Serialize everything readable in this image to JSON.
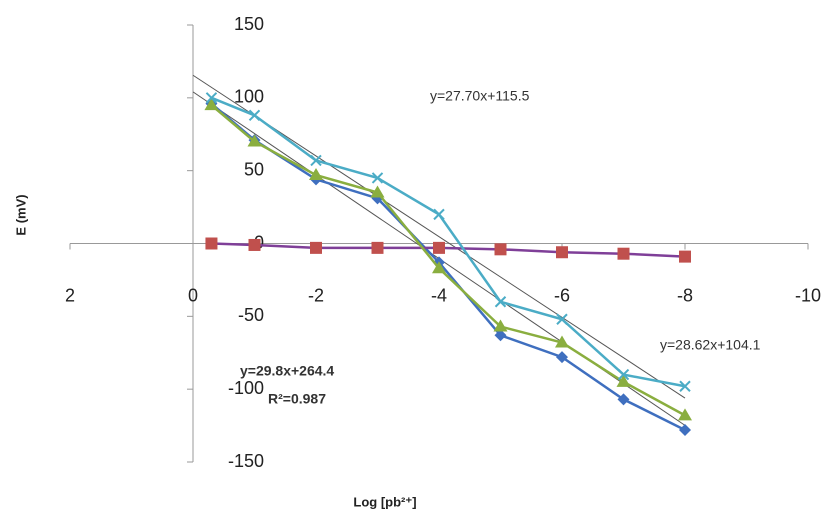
{
  "chart_data": {
    "type": "line",
    "x_label": "Log [pb²⁺]",
    "y_label": "E (mV)",
    "x": [
      -0.3,
      -1,
      -2,
      -3,
      -4,
      -5,
      -6,
      -7,
      -8
    ],
    "xlim": [
      2,
      -10
    ],
    "xticks": [
      2,
      0,
      -2,
      -4,
      -6,
      -8,
      -10
    ],
    "ylim": [
      -150,
      150
    ],
    "yticks": [
      -150,
      -100,
      -50,
      0,
      50,
      100,
      150
    ],
    "grid": false,
    "series": [
      {
        "color": "#3f6fbf",
        "marker": "diamond",
        "values": [
          96,
          71,
          44,
          31,
          -13,
          -63,
          -78,
          -107,
          -128
        ]
      },
      {
        "color": "#7f3f98",
        "marker_color": "#c0504d",
        "marker": "square",
        "values": [
          0,
          -1,
          -3,
          -3,
          -3,
          -4,
          -6,
          -7,
          -9
        ]
      },
      {
        "color": "#8aae3f",
        "marker": "triangle",
        "values": [
          95,
          70,
          47,
          35,
          -17,
          -57,
          -68,
          -95,
          -118
        ]
      },
      {
        "color": "#4bacc6",
        "marker": "cross",
        "values": [
          100,
          88,
          57,
          45,
          20,
          -40,
          -52,
          -90,
          -98
        ]
      }
    ],
    "trendlines": [
      {
        "slope": 27.7,
        "intercept": 115.5,
        "from": 0,
        "to": -8
      },
      {
        "slope": 28.62,
        "intercept": 104.1,
        "from": 0,
        "to": -8
      }
    ],
    "annotations": [
      "y=27.70x+115.5",
      "y=28.62x+104.1",
      "y=29.8x+264.4",
      "R²=0.987"
    ]
  }
}
